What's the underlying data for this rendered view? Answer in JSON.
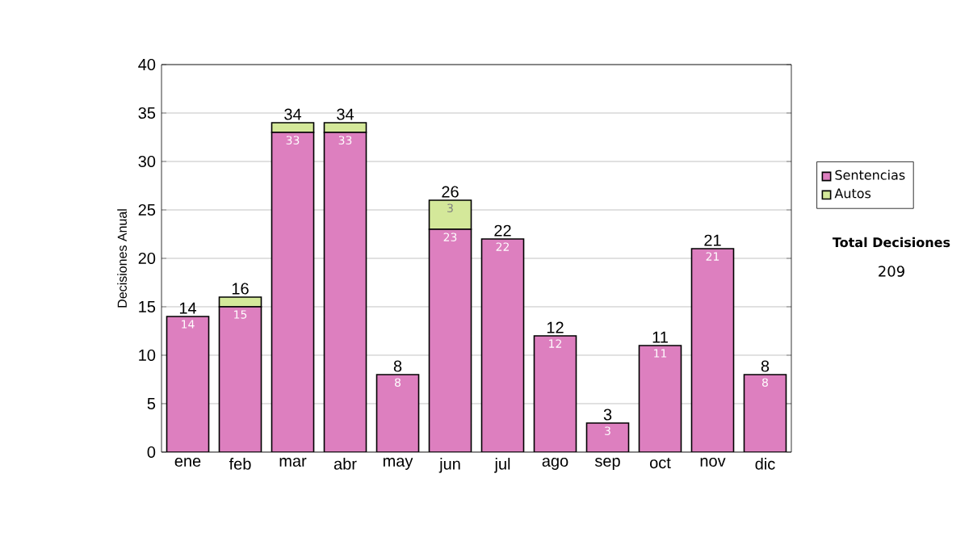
{
  "chart_data": {
    "type": "bar",
    "stacked": true,
    "ylabel": "Decisiones Anual",
    "categories": [
      "ene",
      "feb",
      "mar",
      "abr",
      "may",
      "jun",
      "jul",
      "ago",
      "sep",
      "oct",
      "nov",
      "dic"
    ],
    "series": [
      {
        "name": "Sentencias",
        "color": "#dd7fbf",
        "values": [
          14,
          15,
          33,
          33,
          8,
          23,
          22,
          12,
          3,
          11,
          21,
          8
        ],
        "value_labels": [
          "14",
          "15",
          "33",
          "33",
          "8",
          "23",
          "22",
          "12",
          "3",
          "11",
          "21",
          "8"
        ]
      },
      {
        "name": "Autos",
        "color": "#d4e89a",
        "values": [
          0,
          1,
          1,
          1,
          0,
          3,
          0,
          0,
          0,
          0,
          0,
          0
        ],
        "value_labels": [
          null,
          null,
          null,
          null,
          null,
          "3",
          null,
          null,
          null,
          null,
          null,
          null
        ]
      }
    ],
    "totals": [
      "14",
      "16",
      "34",
      "34",
      "8",
      "26",
      "22",
      "12",
      "3",
      "11",
      "21",
      "8"
    ],
    "ylim": [
      0,
      40
    ],
    "yticks": [
      0,
      5,
      10,
      15,
      20,
      25,
      30,
      35,
      40
    ],
    "grid": "y",
    "legend": "right",
    "annotations": [
      "Total Decisiones",
      "209"
    ]
  }
}
